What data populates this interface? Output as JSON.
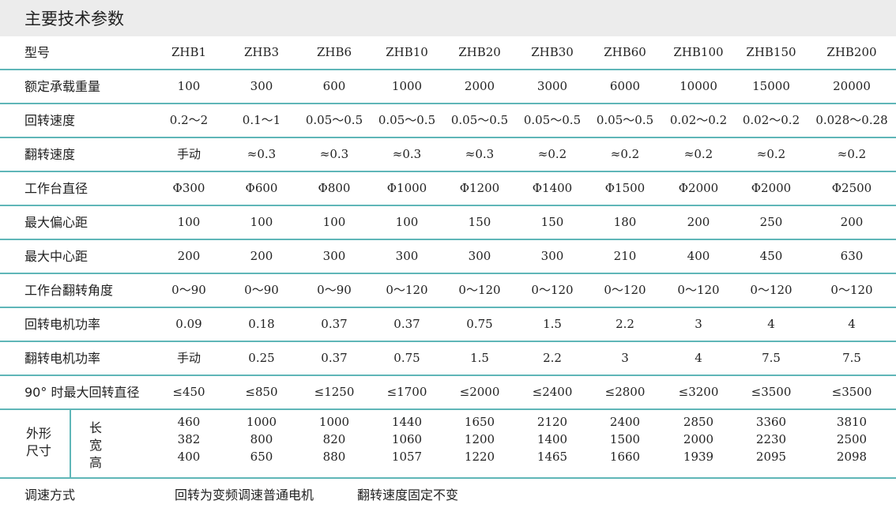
{
  "title": "主要技术参数",
  "header": {
    "label": "型号",
    "models": [
      "ZHB1",
      "ZHB3",
      "ZHB6",
      "ZHB10",
      "ZHB20",
      "ZHB30",
      "ZHB60",
      "ZHB100",
      "ZHB150",
      "ZHB200"
    ]
  },
  "rows": [
    {
      "label": "额定承载重量",
      "values": [
        "100",
        "300",
        "600",
        "1000",
        "2000",
        "3000",
        "6000",
        "10000",
        "15000",
        "20000"
      ]
    },
    {
      "label": "回转速度",
      "values": [
        "0.2～2",
        "0.1～1",
        "0.05～0.5",
        "0.05～0.5",
        "0.05～0.5",
        "0.05～0.5",
        "0.05～0.5",
        "0.02～0.2",
        "0.02～0.2",
        "0.028～0.28"
      ]
    },
    {
      "label": "翻转速度",
      "values": [
        "手动",
        "≈0.3",
        "≈0.3",
        "≈0.3",
        "≈0.3",
        "≈0.2",
        "≈0.2",
        "≈0.2",
        "≈0.2",
        "≈0.2"
      ]
    },
    {
      "label": "工作台直径",
      "values": [
        "Φ300",
        "Φ600",
        "Φ800",
        "Φ1000",
        "Φ1200",
        "Φ1400",
        "Φ1500",
        "Φ2000",
        "Φ2000",
        "Φ2500"
      ]
    },
    {
      "label": "最大偏心距",
      "values": [
        "100",
        "100",
        "100",
        "100",
        "150",
        "150",
        "180",
        "200",
        "250",
        "200"
      ]
    },
    {
      "label": "最大中心距",
      "values": [
        "200",
        "200",
        "300",
        "300",
        "300",
        "300",
        "210",
        "400",
        "450",
        "630"
      ]
    },
    {
      "label": "工作台翻转角度",
      "values": [
        "0～90",
        "0～90",
        "0～90",
        "0～120",
        "0～120",
        "0～120",
        "0～120",
        "0～120",
        "0～120",
        "0～120"
      ]
    },
    {
      "label": "回转电机功率",
      "values": [
        "0.09",
        "0.18",
        "0.37",
        "0.37",
        "0.75",
        "1.5",
        "2.2",
        "3",
        "4",
        "4"
      ]
    },
    {
      "label": "翻转电机功率",
      "values": [
        "手动",
        "0.25",
        "0.37",
        "0.75",
        "1.5",
        "2.2",
        "3",
        "4",
        "7.5",
        "7.5"
      ]
    },
    {
      "label": "90° 时最大回转直径",
      "values": [
        "≤450",
        "≤850",
        "≤1250",
        "≤1700",
        "≤2000",
        "≤2400",
        "≤2800",
        "≤3200",
        "≤3500",
        "≤3500"
      ]
    }
  ],
  "dimensions": {
    "label_line1": "外形",
    "label_line2": "尺寸",
    "length_label": "长",
    "width_label": "宽",
    "height_label": "高",
    "length": [
      "460",
      "1000",
      "1000",
      "1440",
      "1650",
      "2120",
      "2400",
      "2850",
      "3360",
      "3810"
    ],
    "width": [
      "382",
      "800",
      "820",
      "1060",
      "1200",
      "1400",
      "1500",
      "2000",
      "2230",
      "2500"
    ],
    "height": [
      "400",
      "650",
      "880",
      "1057",
      "1220",
      "1465",
      "1660",
      "1939",
      "2095",
      "2098"
    ]
  },
  "speed_control": {
    "label": "调速方式",
    "note1": "回转为变频调速普通电机",
    "note2": "翻转速度固定不变"
  }
}
